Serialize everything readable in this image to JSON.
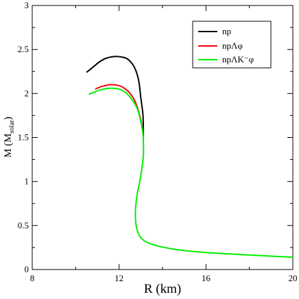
{
  "chart_data": {
    "type": "line",
    "title": "",
    "xlabel": "R (km)",
    "ylabel": "M (M_solar)",
    "ylabel_parts": {
      "main": "M (M",
      "sub": "solar",
      "close": ")"
    },
    "xlim": [
      8,
      20
    ],
    "ylim": [
      0,
      3
    ],
    "x_ticks": [
      8,
      12,
      16,
      20
    ],
    "y_ticks": [
      0,
      0.5,
      1,
      1.5,
      2,
      2.5,
      3
    ],
    "x_tick_labels": [
      "8",
      "12",
      "16",
      "20"
    ],
    "y_tick_labels": [
      "0",
      "0.5",
      "1",
      "1.5",
      "2",
      "2.5",
      "3"
    ],
    "grid": false,
    "legend_position": "top-right",
    "series": [
      {
        "name": "np",
        "color": "#000000",
        "points": [
          [
            10.5,
            2.24
          ],
          [
            10.8,
            2.3
          ],
          [
            11.1,
            2.36
          ],
          [
            11.4,
            2.4
          ],
          [
            11.8,
            2.42
          ],
          [
            12.1,
            2.415
          ],
          [
            12.4,
            2.39
          ],
          [
            12.7,
            2.3
          ],
          [
            12.9,
            2.15
          ],
          [
            13.0,
            1.95
          ],
          [
            13.1,
            1.75
          ],
          [
            13.12,
            1.5
          ]
        ]
      },
      {
        "name": "npΛφ",
        "color": "#ff0000",
        "points": [
          [
            10.9,
            2.05
          ],
          [
            11.2,
            2.08
          ],
          [
            11.6,
            2.1
          ],
          [
            12.0,
            2.09
          ],
          [
            12.3,
            2.05
          ],
          [
            12.6,
            1.97
          ],
          [
            12.8,
            1.87
          ],
          [
            12.98,
            1.72
          ],
          [
            13.08,
            1.58
          ],
          [
            13.12,
            1.5
          ]
        ]
      },
      {
        "name": "npΛK⁻φ",
        "color": "#00ee00",
        "points": [
          [
            10.6,
            1.99
          ],
          [
            10.9,
            2.02
          ],
          [
            11.2,
            2.045
          ],
          [
            11.6,
            2.06
          ],
          [
            12.0,
            2.05
          ],
          [
            12.3,
            2.01
          ],
          [
            12.6,
            1.93
          ],
          [
            12.85,
            1.82
          ],
          [
            13.0,
            1.68
          ],
          [
            13.1,
            1.55
          ],
          [
            13.12,
            1.45
          ],
          [
            13.12,
            1.3
          ],
          [
            13.05,
            1.15
          ],
          [
            12.95,
            1.0
          ],
          [
            12.83,
            0.85
          ],
          [
            12.76,
            0.7
          ],
          [
            12.75,
            0.6
          ],
          [
            12.8,
            0.48
          ],
          [
            12.95,
            0.38
          ],
          [
            13.2,
            0.32
          ],
          [
            13.6,
            0.28
          ],
          [
            14.2,
            0.245
          ],
          [
            15.0,
            0.215
          ],
          [
            16.0,
            0.193
          ],
          [
            17.0,
            0.178
          ],
          [
            18.0,
            0.165
          ],
          [
            19.0,
            0.152
          ],
          [
            20.0,
            0.14
          ]
        ]
      }
    ]
  }
}
